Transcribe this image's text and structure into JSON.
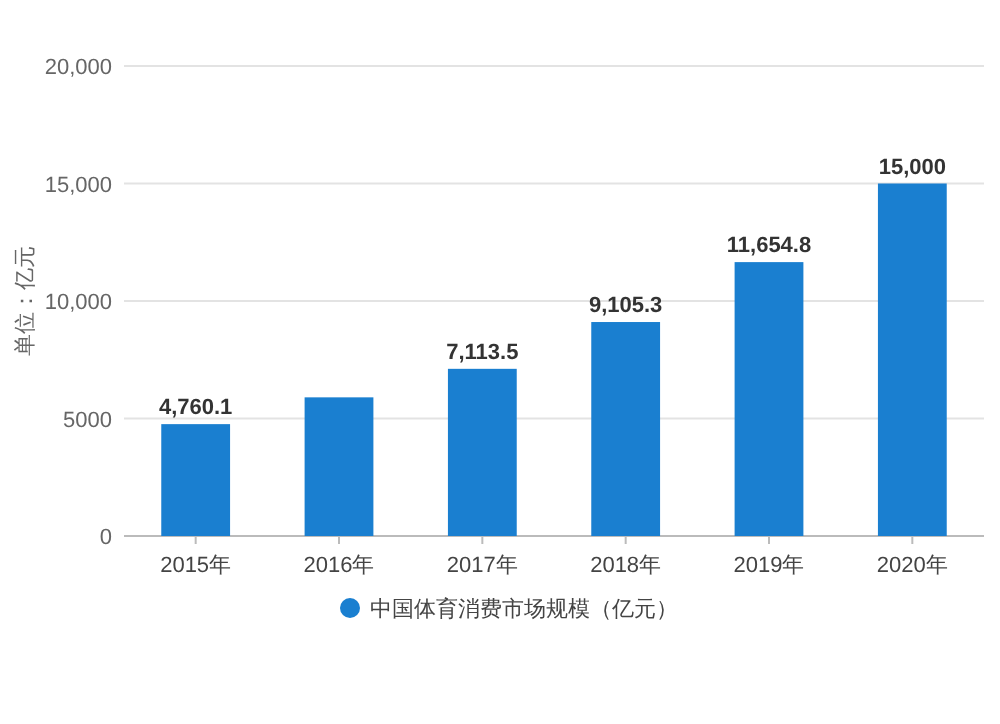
{
  "chart_data": {
    "type": "bar",
    "ylabel": "单位：亿元",
    "categories": [
      "2015年",
      "2016年",
      "2017年",
      "2018年",
      "2019年",
      "2020年"
    ],
    "series": [
      {
        "name": "中国体育消费市场规模（亿元）",
        "color": "#1a7fd0",
        "values": [
          4760.1,
          5900,
          7113.5,
          9105.3,
          11654.8,
          15000
        ]
      }
    ],
    "value_labels": [
      "4,760.1",
      null,
      "7,113.5",
      "9,105.3",
      "11,654.8",
      "15,000"
    ],
    "ylim": [
      0,
      20000
    ],
    "yticks": [
      0,
      {
        "value": 5000,
        "label": "5000"
      },
      {
        "value": 10000,
        "label": "10,000"
      },
      {
        "value": 15000,
        "label": "15,000"
      },
      {
        "value": 20000,
        "label": "20,000"
      }
    ],
    "grid": "y",
    "legend": "bottom"
  }
}
